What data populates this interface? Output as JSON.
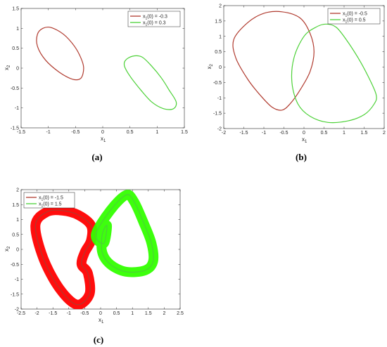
{
  "colors": {
    "red": "#b03a2e",
    "green": "#4cd137",
    "red_fill": "#ff0000",
    "green_fill": "#33ff00",
    "axis": "#262626"
  },
  "chart_data": [
    {
      "id": "a",
      "type": "line",
      "caption": "(a)",
      "xlabel": "x1",
      "ylabel": "x2",
      "xlim": [
        -1.5,
        1.5
      ],
      "ylim": [
        -1.5,
        1.5
      ],
      "xticks": [
        "-1.5",
        "-1",
        "-0.5",
        "0",
        "0.5",
        "1",
        "1.5"
      ],
      "yticks": [
        "1.5",
        "1",
        "0.5",
        "0",
        "-0.5",
        "-1",
        "-1.5"
      ],
      "legend_loc": "top-right",
      "series": [
        {
          "name": "x1(0) = -0.3",
          "color": "red",
          "x": [
            -1.1,
            -0.95,
            -0.72,
            -0.52,
            -0.4,
            -0.35,
            -0.4,
            -0.55,
            -0.8,
            -1.05,
            -1.2,
            -1.2,
            -1.1
          ],
          "y": [
            1.0,
            1.02,
            0.85,
            0.55,
            0.25,
            0.0,
            -0.25,
            -0.28,
            -0.1,
            0.2,
            0.55,
            0.85,
            1.0
          ]
        },
        {
          "name": "x1(0) = 0.3",
          "color": "green",
          "x": [
            0.55,
            0.72,
            0.9,
            1.08,
            1.22,
            1.35,
            1.3,
            1.12,
            0.9,
            0.7,
            0.5,
            0.4,
            0.42,
            0.55
          ],
          "y": [
            0.3,
            0.28,
            0.05,
            -0.25,
            -0.55,
            -0.85,
            -1.02,
            -1.02,
            -0.85,
            -0.55,
            -0.2,
            0.05,
            0.2,
            0.3
          ]
        }
      ]
    },
    {
      "id": "b",
      "type": "line",
      "caption": "(b)",
      "xlabel": "x1",
      "ylabel": "x2",
      "xlim": [
        -2,
        2
      ],
      "ylim": [
        -2,
        2
      ],
      "xticks": [
        "-2",
        "-1.5",
        "-1",
        "-0.5",
        "0",
        "0.5",
        "1",
        "1.5",
        "2"
      ],
      "yticks": [
        "2",
        "1.5",
        "1",
        "0.5",
        "0",
        "-0.5",
        "-1",
        "-1.5",
        "-2"
      ],
      "legend_loc": "top-right",
      "series": [
        {
          "name": "x1(0) = -0.5",
          "color": "red",
          "x": [
            -1.75,
            -1.4,
            -1.0,
            -0.55,
            -0.1,
            0.15,
            0.25,
            0.15,
            -0.1,
            -0.35,
            -0.55,
            -0.8,
            -1.1,
            -1.4,
            -1.7,
            -1.75
          ],
          "y": [
            0.9,
            1.45,
            1.75,
            1.8,
            1.6,
            1.1,
            0.5,
            -0.15,
            -0.75,
            -1.2,
            -1.4,
            -1.3,
            -0.9,
            -0.4,
            0.3,
            0.9
          ]
        },
        {
          "name": "x1(0) = 0.5",
          "color": "green",
          "x": [
            0.0,
            0.3,
            0.55,
            0.8,
            1.05,
            1.35,
            1.6,
            1.8,
            1.75,
            1.5,
            1.1,
            0.6,
            0.15,
            -0.15,
            -0.3,
            -0.25,
            0.0
          ],
          "y": [
            1.0,
            1.3,
            1.4,
            1.3,
            0.9,
            0.3,
            -0.3,
            -0.9,
            -1.2,
            -1.55,
            -1.75,
            -1.8,
            -1.6,
            -1.2,
            -0.5,
            0.3,
            1.0
          ]
        }
      ]
    },
    {
      "id": "c",
      "type": "line",
      "caption": "(c)",
      "xlabel": "x1",
      "ylabel": "x2",
      "xlim": [
        -2.5,
        2.5
      ],
      "ylim": [
        -2,
        2
      ],
      "xticks": [
        "-2.5",
        "-2",
        "-1.5",
        "-1",
        "-0.5",
        "0",
        "0.5",
        "1",
        "1.5",
        "2",
        "2.5"
      ],
      "yticks": [
        "2",
        "1.5",
        "1",
        "0.5",
        "0",
        "-0.5",
        "-1",
        "-1.5",
        "-2"
      ],
      "legend_loc": "top-left",
      "series": [
        {
          "name": "x1(0) = -1.5",
          "color": "red",
          "x": [
            -2.05,
            -1.7,
            -1.2,
            -0.7,
            -0.3,
            -0.3,
            -0.5,
            -0.6,
            -0.4,
            -0.35,
            -0.75,
            -1.3,
            -1.8,
            -2.05
          ],
          "y": [
            0.8,
            1.25,
            1.3,
            1.15,
            0.8,
            0.3,
            -0.1,
            -0.5,
            -0.8,
            -1.5,
            -1.85,
            -1.3,
            -0.3,
            0.8
          ]
        },
        {
          "name": "x1(0) = 1.5",
          "color": "green",
          "x": [
            -0.15,
            0.3,
            0.8,
            1.05,
            1.35,
            1.6,
            1.65,
            1.4,
            0.8,
            0.3,
            0.05,
            0.05,
            0.2,
            0.1,
            -0.15
          ],
          "y": [
            0.5,
            1.3,
            1.82,
            1.6,
            0.9,
            0.2,
            -0.4,
            -0.7,
            -0.75,
            -0.5,
            -0.1,
            0.5,
            0.8,
            0.2,
            0.5
          ]
        }
      ]
    }
  ]
}
